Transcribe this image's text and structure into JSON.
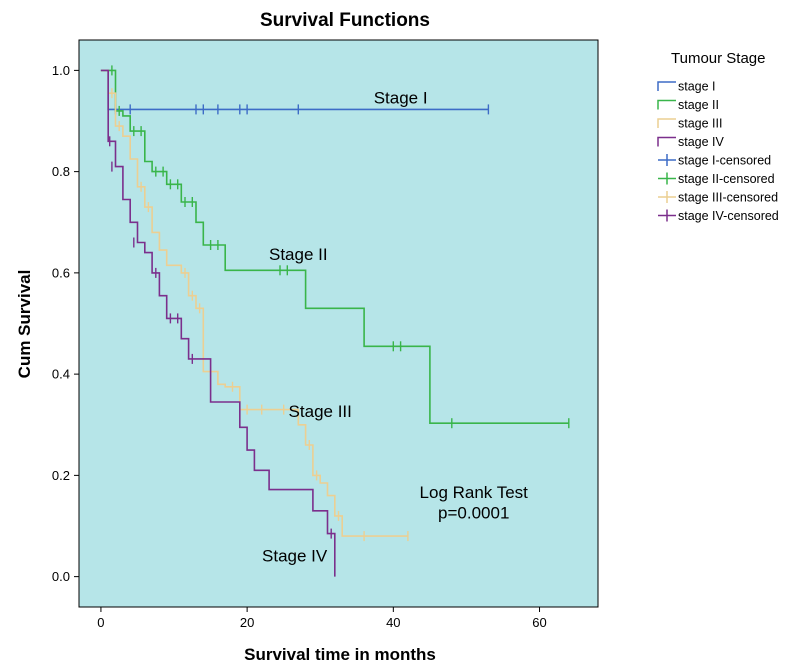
{
  "chart_data": {
    "type": "line",
    "subtype": "kaplan-meier step",
    "title": "Survival Functions",
    "xlabel": "Survival time in months",
    "ylabel": "Cum Survival",
    "xlim": [
      -3,
      68
    ],
    "ylim": [
      -0.06,
      1.06
    ],
    "xticks": [
      0,
      20,
      40,
      60
    ],
    "yticks": [
      0.0,
      0.2,
      0.4,
      0.6,
      0.8,
      1.0
    ],
    "xtick_labels": [
      "0",
      "20",
      "40",
      "60"
    ],
    "ytick_labels": [
      "0.0",
      "0.2",
      "0.4",
      "0.6",
      "0.8",
      "1.0"
    ],
    "plot_background": "#b6e5e8",
    "grid": false,
    "legend": {
      "title": "Tumour Stage",
      "placement": "right-outside"
    },
    "annotations": {
      "stage_i": "Stage I",
      "stage_ii": "Stage II",
      "stage_iii": "Stage III",
      "stage_iv": "Stage IV",
      "test_line1": "Log Rank Test",
      "test_line2": "p=0.0001"
    },
    "series": [
      {
        "name": "stage I",
        "censored_name": "stage I-censored",
        "color": "#3d6cc6",
        "steps": [
          [
            0,
            1.0
          ],
          [
            1,
            0.923
          ],
          [
            53,
            0.923
          ]
        ],
        "censored": [
          [
            2,
            0.923
          ],
          [
            4,
            0.923
          ],
          [
            13,
            0.923
          ],
          [
            14,
            0.923
          ],
          [
            16,
            0.923
          ],
          [
            19,
            0.923
          ],
          [
            20,
            0.923
          ],
          [
            27,
            0.923
          ],
          [
            53,
            0.923
          ]
        ]
      },
      {
        "name": "stage II",
        "censored_name": "stage II-censored",
        "color": "#39b54a",
        "steps": [
          [
            0,
            1.0
          ],
          [
            1,
            1.0
          ],
          [
            2,
            0.92
          ],
          [
            3,
            0.91
          ],
          [
            4,
            0.88
          ],
          [
            6,
            0.82
          ],
          [
            7,
            0.8
          ],
          [
            9,
            0.775
          ],
          [
            11,
            0.74
          ],
          [
            13,
            0.7
          ],
          [
            14,
            0.655
          ],
          [
            17,
            0.605
          ],
          [
            28,
            0.53
          ],
          [
            36,
            0.455
          ],
          [
            45,
            0.303
          ],
          [
            64,
            0.303
          ]
        ],
        "censored": [
          [
            1.5,
            1.0
          ],
          [
            2.5,
            0.92
          ],
          [
            4.5,
            0.88
          ],
          [
            5.5,
            0.88
          ],
          [
            7.5,
            0.8
          ],
          [
            8.5,
            0.8
          ],
          [
            9.5,
            0.775
          ],
          [
            10.5,
            0.775
          ],
          [
            11.5,
            0.74
          ],
          [
            12.5,
            0.74
          ],
          [
            15,
            0.655
          ],
          [
            16,
            0.655
          ],
          [
            24.5,
            0.605
          ],
          [
            25.5,
            0.605
          ],
          [
            40,
            0.455
          ],
          [
            41,
            0.455
          ],
          [
            48,
            0.303
          ],
          [
            64,
            0.303
          ]
        ]
      },
      {
        "name": "stage III",
        "censored_name": "stage III-censored",
        "color": "#eccf92",
        "steps": [
          [
            0,
            1.0
          ],
          [
            1,
            0.955
          ],
          [
            2,
            0.89
          ],
          [
            3,
            0.87
          ],
          [
            4,
            0.825
          ],
          [
            5,
            0.77
          ],
          [
            6,
            0.73
          ],
          [
            7,
            0.68
          ],
          [
            8,
            0.645
          ],
          [
            9,
            0.615
          ],
          [
            11,
            0.6
          ],
          [
            12,
            0.555
          ],
          [
            13,
            0.53
          ],
          [
            14,
            0.405
          ],
          [
            16,
            0.38
          ],
          [
            17,
            0.375
          ],
          [
            19,
            0.33
          ],
          [
            26,
            0.33
          ],
          [
            27,
            0.3
          ],
          [
            28,
            0.26
          ],
          [
            29,
            0.2
          ],
          [
            30,
            0.185
          ],
          [
            31,
            0.16
          ],
          [
            32,
            0.12
          ],
          [
            33,
            0.08
          ],
          [
            42,
            0.08
          ]
        ],
        "censored": [
          [
            1.5,
            0.955
          ],
          [
            2.5,
            0.89
          ],
          [
            5.5,
            0.77
          ],
          [
            6.5,
            0.73
          ],
          [
            11.5,
            0.6
          ],
          [
            12.5,
            0.555
          ],
          [
            13.5,
            0.53
          ],
          [
            15,
            0.405
          ],
          [
            18,
            0.375
          ],
          [
            20,
            0.33
          ],
          [
            22,
            0.33
          ],
          [
            25,
            0.33
          ],
          [
            28.5,
            0.26
          ],
          [
            29.5,
            0.2
          ],
          [
            32.5,
            0.12
          ],
          [
            36,
            0.08
          ],
          [
            42,
            0.08
          ]
        ]
      },
      {
        "name": "stage IV",
        "censored_name": "stage IV-censored",
        "color": "#7b2f8c",
        "steps": [
          [
            0,
            1.0
          ],
          [
            1,
            0.86
          ],
          [
            2,
            0.81
          ],
          [
            3,
            0.745
          ],
          [
            4,
            0.7
          ],
          [
            5,
            0.66
          ],
          [
            6,
            0.64
          ],
          [
            7,
            0.6
          ],
          [
            8,
            0.555
          ],
          [
            9,
            0.51
          ],
          [
            11,
            0.47
          ],
          [
            12,
            0.43
          ],
          [
            15,
            0.345
          ],
          [
            19,
            0.295
          ],
          [
            20,
            0.25
          ],
          [
            21,
            0.21
          ],
          [
            23,
            0.172
          ],
          [
            27,
            0.172
          ],
          [
            29,
            0.13
          ],
          [
            31,
            0.085
          ],
          [
            32,
            0.0
          ]
        ],
        "censored": [
          [
            1.2,
            0.86
          ],
          [
            1.5,
            0.81
          ],
          [
            4.5,
            0.66
          ],
          [
            7.5,
            0.6
          ],
          [
            9.5,
            0.51
          ],
          [
            10.5,
            0.51
          ],
          [
            12.5,
            0.43
          ],
          [
            31.5,
            0.085
          ]
        ]
      }
    ]
  }
}
